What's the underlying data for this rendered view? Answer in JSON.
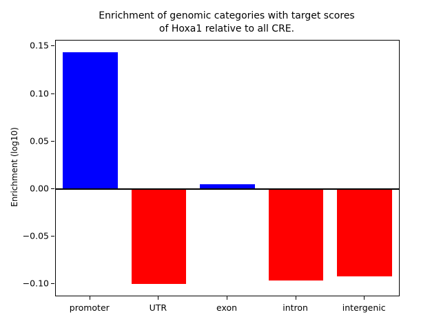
{
  "chart_data": {
    "type": "bar",
    "title": "Enrichment of genomic categories with target scores\nof Hoxa1 relative to all CRE.",
    "ylabel": "Enrichment (log10)",
    "xlabel": "",
    "categories": [
      "promoter",
      "UTR",
      "exon",
      "intron",
      "intergenic"
    ],
    "values": [
      0.144,
      -0.1,
      0.005,
      -0.096,
      -0.092
    ],
    "bar_colors": [
      "#0000ff",
      "#ff0000",
      "#0000ff",
      "#ff0000",
      "#ff0000"
    ],
    "positive_color": "#0000ff",
    "negative_color": "#ff0000",
    "yticks": [
      -0.1,
      -0.05,
      0.0,
      0.05,
      0.1,
      0.15
    ],
    "ytick_labels": [
      "−0.10",
      "−0.05",
      "0.00",
      "0.05",
      "0.10",
      "0.15"
    ],
    "ylim": [
      -0.112,
      0.156
    ],
    "grid": false,
    "legend": "none",
    "zero_line": true
  }
}
